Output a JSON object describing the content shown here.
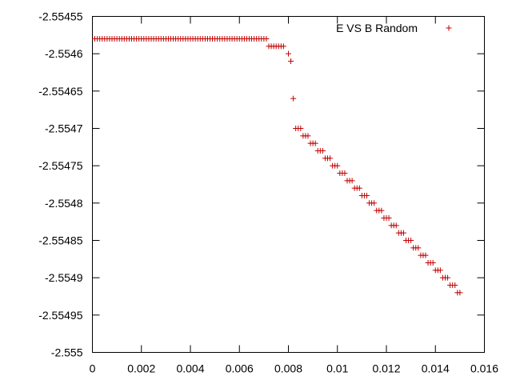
{
  "chart_data": {
    "type": "scatter",
    "title": "",
    "xlabel": "",
    "ylabel": "",
    "xlim": [
      0,
      0.016
    ],
    "ylim": [
      -2.555,
      -2.55455
    ],
    "x_ticks": [
      "0",
      "0.002",
      "0.004",
      "0.006",
      "0.008",
      "0.01",
      "0.012",
      "0.014",
      "0.016"
    ],
    "y_ticks": [
      "-2.55455",
      "-2.5546",
      "-2.55465",
      "-2.5547",
      "-2.55475",
      "-2.5548",
      "-2.55485",
      "-2.5549",
      "-2.55495",
      "-2.555"
    ],
    "grid": false,
    "legend_position": "top-right",
    "marker": "+",
    "color": "#c00000",
    "series": [
      {
        "name": "E VS B Random",
        "points": [
          [
            0.0001,
            -2.55458
          ],
          [
            0.0002,
            -2.55458
          ],
          [
            0.0003,
            -2.55458
          ],
          [
            0.0004,
            -2.55458
          ],
          [
            0.0005,
            -2.55458
          ],
          [
            0.0006,
            -2.55458
          ],
          [
            0.0007,
            -2.55458
          ],
          [
            0.0008,
            -2.55458
          ],
          [
            0.0009,
            -2.55458
          ],
          [
            0.001,
            -2.55458
          ],
          [
            0.0011,
            -2.55458
          ],
          [
            0.0012,
            -2.55458
          ],
          [
            0.0013,
            -2.55458
          ],
          [
            0.0014,
            -2.55458
          ],
          [
            0.0015,
            -2.55458
          ],
          [
            0.0016,
            -2.55458
          ],
          [
            0.0017,
            -2.55458
          ],
          [
            0.0018,
            -2.55458
          ],
          [
            0.0019,
            -2.55458
          ],
          [
            0.002,
            -2.55458
          ],
          [
            0.0021,
            -2.55458
          ],
          [
            0.0022,
            -2.55458
          ],
          [
            0.0023,
            -2.55458
          ],
          [
            0.0024,
            -2.55458
          ],
          [
            0.0025,
            -2.55458
          ],
          [
            0.0026,
            -2.55458
          ],
          [
            0.0027,
            -2.55458
          ],
          [
            0.0028,
            -2.55458
          ],
          [
            0.0029,
            -2.55458
          ],
          [
            0.003,
            -2.55458
          ],
          [
            0.0031,
            -2.55458
          ],
          [
            0.0032,
            -2.55458
          ],
          [
            0.0033,
            -2.55458
          ],
          [
            0.0034,
            -2.55458
          ],
          [
            0.0035,
            -2.55458
          ],
          [
            0.0036,
            -2.55458
          ],
          [
            0.0037,
            -2.55458
          ],
          [
            0.0038,
            -2.55458
          ],
          [
            0.0039,
            -2.55458
          ],
          [
            0.004,
            -2.55458
          ],
          [
            0.0041,
            -2.55458
          ],
          [
            0.0042,
            -2.55458
          ],
          [
            0.0043,
            -2.55458
          ],
          [
            0.0044,
            -2.55458
          ],
          [
            0.0045,
            -2.55458
          ],
          [
            0.0046,
            -2.55458
          ],
          [
            0.0047,
            -2.55458
          ],
          [
            0.0048,
            -2.55458
          ],
          [
            0.0049,
            -2.55458
          ],
          [
            0.005,
            -2.55458
          ],
          [
            0.0051,
            -2.55458
          ],
          [
            0.0052,
            -2.55458
          ],
          [
            0.0053,
            -2.55458
          ],
          [
            0.0054,
            -2.55458
          ],
          [
            0.0055,
            -2.55458
          ],
          [
            0.0056,
            -2.55458
          ],
          [
            0.0057,
            -2.55458
          ],
          [
            0.0058,
            -2.55458
          ],
          [
            0.0059,
            -2.55458
          ],
          [
            0.006,
            -2.55458
          ],
          [
            0.0061,
            -2.55458
          ],
          [
            0.0062,
            -2.55458
          ],
          [
            0.0063,
            -2.55458
          ],
          [
            0.0064,
            -2.55458
          ],
          [
            0.0065,
            -2.55458
          ],
          [
            0.0066,
            -2.55458
          ],
          [
            0.0067,
            -2.55458
          ],
          [
            0.0068,
            -2.55458
          ],
          [
            0.0069,
            -2.55458
          ],
          [
            0.007,
            -2.55458
          ],
          [
            0.0071,
            -2.55458
          ],
          [
            0.0072,
            -2.55459
          ],
          [
            0.0073,
            -2.55459
          ],
          [
            0.0074,
            -2.55459
          ],
          [
            0.0075,
            -2.55459
          ],
          [
            0.0076,
            -2.55459
          ],
          [
            0.0077,
            -2.55459
          ],
          [
            0.0078,
            -2.55459
          ],
          [
            0.008,
            -2.5546
          ],
          [
            0.0081,
            -2.55461
          ],
          [
            0.0082,
            -2.55466
          ],
          [
            0.0083,
            -2.5547
          ],
          [
            0.0084,
            -2.5547
          ],
          [
            0.0085,
            -2.5547
          ],
          [
            0.0086,
            -2.55471
          ],
          [
            0.0087,
            -2.55471
          ],
          [
            0.0088,
            -2.55471
          ],
          [
            0.0089,
            -2.55472
          ],
          [
            0.009,
            -2.55472
          ],
          [
            0.0091,
            -2.55472
          ],
          [
            0.0092,
            -2.55473
          ],
          [
            0.0093,
            -2.55473
          ],
          [
            0.0094,
            -2.55473
          ],
          [
            0.0095,
            -2.55474
          ],
          [
            0.0096,
            -2.55474
          ],
          [
            0.0097,
            -2.55474
          ],
          [
            0.0098,
            -2.55475
          ],
          [
            0.0099,
            -2.55475
          ],
          [
            0.01,
            -2.55475
          ],
          [
            0.0101,
            -2.55476
          ],
          [
            0.0102,
            -2.55476
          ],
          [
            0.0103,
            -2.55476
          ],
          [
            0.0104,
            -2.55477
          ],
          [
            0.0105,
            -2.55477
          ],
          [
            0.0106,
            -2.55477
          ],
          [
            0.0107,
            -2.55478
          ],
          [
            0.0108,
            -2.55478
          ],
          [
            0.0109,
            -2.55478
          ],
          [
            0.011,
            -2.55479
          ],
          [
            0.0111,
            -2.55479
          ],
          [
            0.0112,
            -2.55479
          ],
          [
            0.0113,
            -2.5548
          ],
          [
            0.0114,
            -2.5548
          ],
          [
            0.0115,
            -2.5548
          ],
          [
            0.0116,
            -2.55481
          ],
          [
            0.0117,
            -2.55481
          ],
          [
            0.0118,
            -2.55481
          ],
          [
            0.0119,
            -2.55482
          ],
          [
            0.012,
            -2.55482
          ],
          [
            0.0121,
            -2.55482
          ],
          [
            0.0122,
            -2.55483
          ],
          [
            0.0123,
            -2.55483
          ],
          [
            0.0124,
            -2.55483
          ],
          [
            0.0125,
            -2.55484
          ],
          [
            0.0126,
            -2.55484
          ],
          [
            0.0127,
            -2.55484
          ],
          [
            0.0128,
            -2.55485
          ],
          [
            0.0129,
            -2.55485
          ],
          [
            0.013,
            -2.55485
          ],
          [
            0.0131,
            -2.55486
          ],
          [
            0.0132,
            -2.55486
          ],
          [
            0.0133,
            -2.55486
          ],
          [
            0.0134,
            -2.55487
          ],
          [
            0.0135,
            -2.55487
          ],
          [
            0.0136,
            -2.55487
          ],
          [
            0.0137,
            -2.55488
          ],
          [
            0.0138,
            -2.55488
          ],
          [
            0.0139,
            -2.55488
          ],
          [
            0.014,
            -2.55489
          ],
          [
            0.0141,
            -2.55489
          ],
          [
            0.0142,
            -2.55489
          ],
          [
            0.0143,
            -2.5549
          ],
          [
            0.0144,
            -2.5549
          ],
          [
            0.0145,
            -2.5549
          ],
          [
            0.0146,
            -2.55491
          ],
          [
            0.0147,
            -2.55491
          ],
          [
            0.0148,
            -2.55491
          ],
          [
            0.0149,
            -2.55492
          ],
          [
            0.015,
            -2.55492
          ]
        ]
      }
    ]
  }
}
